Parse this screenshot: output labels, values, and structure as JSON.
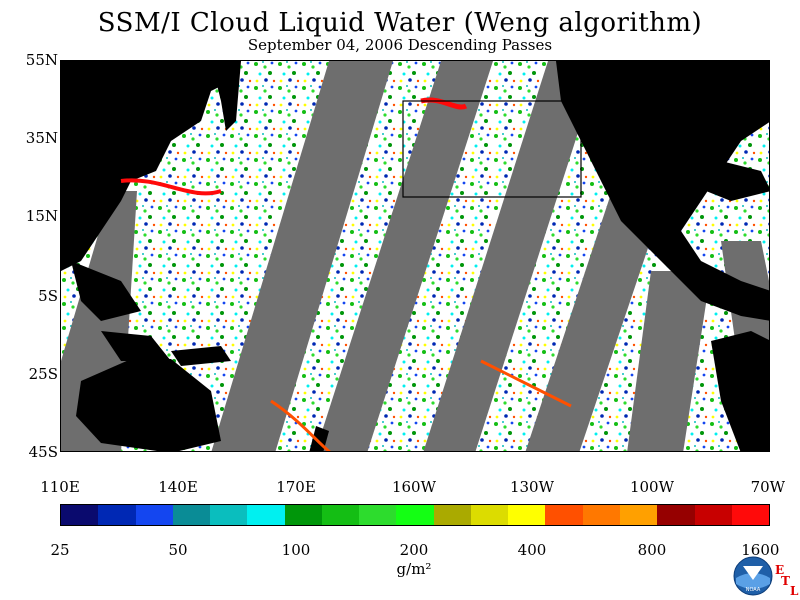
{
  "title": "SSM/I Cloud Liquid Water (Weng algorithm)",
  "subtitle": "September 04, 2006  Descending Passes",
  "lat_labels": [
    "55N",
    "35N",
    "15N",
    "5S",
    "25S",
    "45S"
  ],
  "lon_labels": [
    "110E",
    "140E",
    "170E",
    "160W",
    "130W",
    "100W",
    "70W"
  ],
  "colorbar": {
    "colors": [
      "#0a0a6e",
      "#0028b4",
      "#1446f0",
      "#0a8c96",
      "#0abebe",
      "#00f0f0",
      "#00960a",
      "#14be14",
      "#2ddc2d",
      "#14ff14",
      "#aaaa00",
      "#dcdc00",
      "#ffff00",
      "#ff5000",
      "#ff7800",
      "#ffa000",
      "#960000",
      "#c80000",
      "#ff0a0a"
    ],
    "tick_labels": [
      "25",
      "50",
      "100",
      "200",
      "400",
      "800",
      "1600"
    ],
    "units": "g/m²"
  },
  "logo": {
    "name": "noaa-logo",
    "letters": [
      "E",
      "T",
      "L"
    ]
  }
}
